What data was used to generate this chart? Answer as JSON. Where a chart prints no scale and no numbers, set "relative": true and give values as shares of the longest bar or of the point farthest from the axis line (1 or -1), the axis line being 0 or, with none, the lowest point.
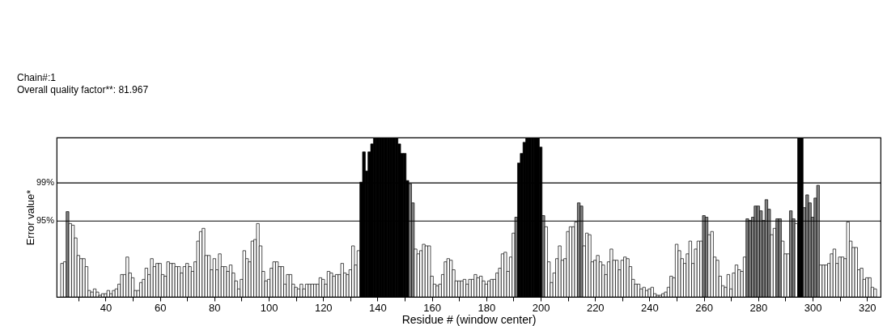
{
  "chart_data": {
    "type": "bar",
    "title": "Chain#:1",
    "subtitle": "Overall quality factor**: 81.967",
    "xlabel": "Residue # (window center)",
    "ylabel": "Error value*",
    "relative": true,
    "x": [
      24,
      25,
      26,
      27,
      28,
      29,
      30,
      31,
      32,
      33,
      34,
      35,
      36,
      37,
      38,
      39,
      40,
      41,
      42,
      43,
      44,
      45,
      46,
      47,
      48,
      49,
      50,
      51,
      52,
      53,
      54,
      55,
      56,
      57,
      58,
      59,
      60,
      61,
      62,
      63,
      64,
      65,
      66,
      67,
      68,
      69,
      70,
      71,
      72,
      73,
      74,
      75,
      76,
      77,
      78,
      79,
      80,
      81,
      82,
      83,
      84,
      85,
      86,
      87,
      88,
      89,
      90,
      91,
      92,
      93,
      94,
      95,
      96,
      97,
      98,
      99,
      100,
      101,
      102,
      103,
      104,
      105,
      106,
      107,
      108,
      109,
      110,
      111,
      112,
      113,
      114,
      115,
      116,
      117,
      118,
      119,
      120,
      121,
      122,
      123,
      124,
      125,
      126,
      127,
      128,
      129,
      130,
      131,
      132,
      133,
      134,
      135,
      136,
      137,
      138,
      139,
      140,
      141,
      142,
      143,
      144,
      145,
      146,
      147,
      148,
      149,
      150,
      151,
      152,
      153,
      154,
      155,
      156,
      157,
      158,
      159,
      160,
      161,
      162,
      163,
      164,
      165,
      166,
      167,
      168,
      169,
      170,
      171,
      172,
      173,
      174,
      175,
      176,
      177,
      178,
      179,
      180,
      181,
      182,
      183,
      184,
      185,
      186,
      187,
      188,
      189,
      190,
      191,
      192,
      193,
      194,
      195,
      196,
      197,
      198,
      199,
      200,
      201,
      202,
      203,
      204,
      205,
      206,
      207,
      208,
      209,
      210,
      211,
      212,
      213,
      214,
      215,
      216,
      217,
      218,
      219,
      220,
      221,
      222,
      223,
      224,
      225,
      226,
      227,
      228,
      229,
      230,
      231,
      232,
      233,
      234,
      235,
      236,
      237,
      238,
      239,
      240,
      241,
      242,
      243,
      244,
      245,
      246,
      247,
      248,
      249,
      250,
      251,
      252,
      253,
      254,
      255,
      256,
      257,
      258,
      259,
      260,
      261,
      262,
      263,
      264,
      265,
      266,
      267,
      268,
      269,
      270,
      271,
      272,
      273,
      274,
      275,
      276,
      277,
      278,
      279,
      280,
      281,
      282,
      283,
      284,
      285,
      286,
      287,
      288,
      289,
      290,
      291,
      292,
      293,
      294,
      295,
      296,
      297,
      298,
      299,
      300,
      301,
      302,
      303,
      304,
      305,
      306,
      307,
      308,
      309,
      310,
      311,
      312,
      313,
      314,
      315,
      316,
      317,
      318,
      319,
      320,
      321,
      322,
      323
    ],
    "values": [
      0.21,
      0.22,
      0.535,
      0.46,
      0.45,
      0.37,
      0.26,
      0.24,
      0.24,
      0.19,
      0.04,
      0.03,
      0.05,
      0.03,
      0.01,
      0.02,
      0.02,
      0.04,
      0.02,
      0.04,
      0.05,
      0.08,
      0.14,
      0.14,
      0.25,
      0.15,
      0.12,
      0.04,
      0.04,
      0.09,
      0.11,
      0.18,
      0.14,
      0.24,
      0.19,
      0.21,
      0.21,
      0.14,
      0.13,
      0.22,
      0.21,
      0.21,
      0.19,
      0.19,
      0.15,
      0.19,
      0.21,
      0.19,
      0.16,
      0.22,
      0.35,
      0.41,
      0.43,
      0.26,
      0.26,
      0.17,
      0.24,
      0.17,
      0.27,
      0.19,
      0.19,
      0.16,
      0.2,
      0.15,
      0.1,
      0.05,
      0.11,
      0.29,
      0.24,
      0.22,
      0.35,
      0.36,
      0.46,
      0.32,
      0.16,
      0.1,
      0.11,
      0.18,
      0.22,
      0.22,
      0.19,
      0.19,
      0.08,
      0.14,
      0.14,
      0.08,
      0.06,
      0.05,
      0.08,
      0.05,
      0.08,
      0.08,
      0.08,
      0.08,
      0.08,
      0.12,
      0.11,
      0.08,
      0.16,
      0.15,
      0.13,
      0.14,
      0.14,
      0.21,
      0.15,
      0.14,
      0.17,
      0.32,
      0.2,
      0.29,
      0.72,
      0.91,
      0.79,
      0.91,
      0.96,
      1,
      1,
      1,
      1,
      1,
      1,
      1,
      1,
      1,
      0.96,
      0.9,
      0.9,
      0.73,
      0.71,
      0.59,
      0.3,
      0.27,
      0.29,
      0.33,
      0.32,
      0.32,
      0.13,
      0.08,
      0.07,
      0.08,
      0.14,
      0.22,
      0.24,
      0.23,
      0.17,
      0.1,
      0.1,
      0.1,
      0.11,
      0.08,
      0.11,
      0.11,
      0.14,
      0.12,
      0.13,
      0.1,
      0.08,
      0.1,
      0.11,
      0.11,
      0.15,
      0.18,
      0.27,
      0.28,
      0.16,
      0.25,
      0.4,
      0.5,
      0.84,
      0.9,
      0.97,
      1,
      1,
      1,
      1,
      1,
      0.94,
      0.51,
      0.44,
      0.22,
      0.09,
      0.15,
      0.24,
      0.32,
      0.23,
      0.24,
      0.41,
      0.44,
      0.44,
      0.47,
      0.59,
      0.57,
      0.32,
      0.4,
      0.39,
      0.22,
      0.23,
      0.26,
      0.22,
      0.2,
      0.14,
      0.22,
      0.3,
      0.23,
      0.23,
      0.17,
      0.23,
      0.25,
      0.24,
      0.19,
      0.11,
      0.08,
      0.08,
      0.05,
      0.06,
      0.04,
      0.05,
      0.06,
      0.02,
      0.01,
      0.01,
      0.02,
      0.03,
      0.06,
      0.13,
      0.12,
      0.33,
      0.29,
      0.24,
      0.21,
      0.27,
      0.35,
      0.21,
      0.3,
      0.35,
      0.35,
      0.51,
      0.5,
      0.39,
      0.41,
      0.25,
      0.23,
      0.13,
      0.07,
      0.06,
      0.14,
      0.05,
      0.15,
      0.2,
      0.17,
      0.16,
      0.25,
      0.49,
      0.48,
      0.5,
      0.57,
      0.57,
      0.54,
      0.48,
      0.61,
      0.55,
      0.39,
      0.43,
      0.49,
      0.49,
      0.35,
      0.27,
      0.27,
      0.54,
      0.49,
      0.46,
      1,
      1,
      0.56,
      0.64,
      0.59,
      0.5,
      0.62,
      0.7,
      0.2,
      0.2,
      0.2,
      0.21,
      0.27,
      0.3,
      0.21,
      0.25,
      0.25,
      0.24,
      0.47,
      0.35,
      0.31,
      0.31,
      0.17,
      0.18,
      0.11,
      0.12,
      0.12,
      0.06,
      0.05
    ],
    "colors": [
      "#ffffff",
      "#ffffff",
      "#808080",
      "#ffffff",
      "#ffffff",
      "#ffffff",
      "#ffffff",
      "#ffffff",
      "#ffffff",
      "#ffffff",
      "#ffffff",
      "#ffffff",
      "#ffffff",
      "#ffffff",
      "#ffffff",
      "#ffffff",
      "#ffffff",
      "#ffffff",
      "#ffffff",
      "#ffffff",
      "#ffffff",
      "#ffffff",
      "#ffffff",
      "#ffffff",
      "#ffffff",
      "#ffffff",
      "#ffffff",
      "#ffffff",
      "#ffffff",
      "#ffffff",
      "#ffffff",
      "#ffffff",
      "#ffffff",
      "#ffffff",
      "#ffffff",
      "#ffffff",
      "#ffffff",
      "#ffffff",
      "#ffffff",
      "#ffffff",
      "#ffffff",
      "#ffffff",
      "#ffffff",
      "#ffffff",
      "#ffffff",
      "#ffffff",
      "#ffffff",
      "#ffffff",
      "#ffffff",
      "#ffffff",
      "#ffffff",
      "#ffffff",
      "#ffffff",
      "#ffffff",
      "#ffffff",
      "#ffffff",
      "#ffffff",
      "#ffffff",
      "#ffffff",
      "#ffffff",
      "#ffffff",
      "#ffffff",
      "#ffffff",
      "#ffffff",
      "#ffffff",
      "#ffffff",
      "#ffffff",
      "#ffffff",
      "#ffffff",
      "#ffffff",
      "#ffffff",
      "#ffffff",
      "#ffffff",
      "#ffffff",
      "#ffffff",
      "#ffffff",
      "#ffffff",
      "#ffffff",
      "#ffffff",
      "#ffffff",
      "#ffffff",
      "#ffffff",
      "#ffffff",
      "#ffffff",
      "#ffffff",
      "#ffffff",
      "#ffffff",
      "#ffffff",
      "#ffffff",
      "#ffffff",
      "#ffffff",
      "#ffffff",
      "#ffffff",
      "#ffffff",
      "#ffffff",
      "#ffffff",
      "#ffffff",
      "#ffffff",
      "#ffffff",
      "#ffffff",
      "#ffffff",
      "#ffffff",
      "#ffffff",
      "#ffffff",
      "#ffffff",
      "#ffffff",
      "#ffffff",
      "#ffffff",
      "#ffffff",
      "#ffffff",
      "#000000",
      "#000000",
      "#000000",
      "#000000",
      "#000000",
      "#000000",
      "#000000",
      "#000000",
      "#000000",
      "#000000",
      "#000000",
      "#000000",
      "#000000",
      "#000000",
      "#000000",
      "#000000",
      "#000000",
      "#000000",
      "#808080",
      "#808080",
      "#ffffff",
      "#ffffff",
      "#ffffff",
      "#ffffff",
      "#ffffff",
      "#ffffff",
      "#ffffff",
      "#ffffff",
      "#ffffff",
      "#ffffff",
      "#ffffff",
      "#ffffff",
      "#ffffff",
      "#ffffff",
      "#ffffff",
      "#ffffff",
      "#ffffff",
      "#ffffff",
      "#ffffff",
      "#ffffff",
      "#ffffff",
      "#ffffff",
      "#ffffff",
      "#ffffff",
      "#ffffff",
      "#ffffff",
      "#ffffff",
      "#ffffff",
      "#ffffff",
      "#ffffff",
      "#ffffff",
      "#ffffff",
      "#ffffff",
      "#ffffff",
      "#ffffff",
      "#ffffff",
      "#ffffff",
      "#808080",
      "#000000",
      "#000000",
      "#000000",
      "#000000",
      "#000000",
      "#000000",
      "#000000",
      "#000000",
      "#000000",
      "#808080",
      "#ffffff",
      "#ffffff",
      "#ffffff",
      "#ffffff",
      "#ffffff",
      "#ffffff",
      "#ffffff",
      "#ffffff",
      "#ffffff",
      "#ffffff",
      "#ffffff",
      "#ffffff",
      "#808080",
      "#808080",
      "#ffffff",
      "#ffffff",
      "#ffffff",
      "#ffffff",
      "#ffffff",
      "#ffffff",
      "#ffffff",
      "#ffffff",
      "#ffffff",
      "#ffffff",
      "#ffffff",
      "#ffffff",
      "#ffffff",
      "#ffffff",
      "#ffffff",
      "#ffffff",
      "#ffffff",
      "#ffffff",
      "#ffffff",
      "#ffffff",
      "#ffffff",
      "#ffffff",
      "#ffffff",
      "#ffffff",
      "#ffffff",
      "#ffffff",
      "#ffffff",
      "#ffffff",
      "#ffffff",
      "#ffffff",
      "#ffffff",
      "#ffffff",
      "#ffffff",
      "#ffffff",
      "#ffffff",
      "#ffffff",
      "#ffffff",
      "#ffffff",
      "#ffffff",
      "#ffffff",
      "#ffffff",
      "#ffffff",
      "#ffffff",
      "#ffffff",
      "#808080",
      "#808080",
      "#ffffff",
      "#ffffff",
      "#ffffff",
      "#ffffff",
      "#ffffff",
      "#ffffff",
      "#ffffff",
      "#ffffff",
      "#ffffff",
      "#ffffff",
      "#ffffff",
      "#ffffff",
      "#ffffff",
      "#ffffff",
      "#808080",
      "#808080",
      "#808080",
      "#808080",
      "#808080",
      "#808080",
      "#808080",
      "#808080",
      "#808080",
      "#ffffff",
      "#ffffff",
      "#808080",
      "#808080",
      "#ffffff",
      "#ffffff",
      "#ffffff",
      "#808080",
      "#808080",
      "#ffffff",
      "#000000",
      "#000000",
      "#808080",
      "#808080",
      "#808080",
      "#808080",
      "#808080",
      "#808080",
      "#ffffff",
      "#ffffff",
      "#ffffff",
      "#ffffff",
      "#ffffff",
      "#ffffff",
      "#ffffff",
      "#ffffff",
      "#ffffff",
      "#ffffff",
      "#ffffff",
      "#ffffff",
      "#ffffff",
      "#ffffff",
      "#ffffff",
      "#ffffff",
      "#ffffff",
      "#ffffff",
      "#ffffff",
      "#ffffff",
      "#ffffff"
    ],
    "xlim": [
      23.5,
      323.5
    ],
    "xticks": [
      {
        "value": 30,
        "label": null
      },
      40,
      {
        "value": 50,
        "label": null
      },
      60,
      {
        "value": 70,
        "label": null
      },
      80,
      {
        "value": 90,
        "label": null
      },
      100,
      {
        "value": 110,
        "label": null
      },
      120,
      {
        "value": 130,
        "label": null
      },
      140,
      {
        "value": 150,
        "label": null
      },
      160,
      {
        "value": 170,
        "label": null
      },
      180,
      {
        "value": 190,
        "label": null
      },
      200,
      {
        "value": 210,
        "label": null
      },
      220,
      {
        "value": 230,
        "label": null
      },
      240,
      {
        "value": 250,
        "label": null
      },
      260,
      {
        "value": 270,
        "label": null
      },
      280,
      {
        "value": 290,
        "label": null
      },
      300,
      {
        "value": 310,
        "label": null
      },
      320
    ],
    "ref_lines": [
      {
        "axis": "y",
        "value": 0.715
      },
      {
        "axis": "y",
        "value": 0.476
      }
    ],
    "annotations": [
      "99%",
      "95%"
    ]
  }
}
